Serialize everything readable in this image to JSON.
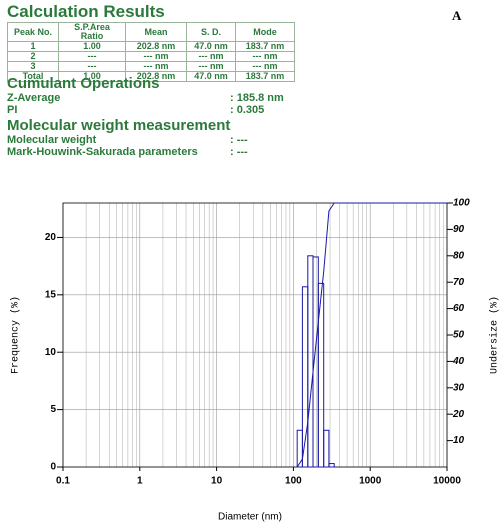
{
  "header": {
    "title": "Calculation Results",
    "label": "A"
  },
  "table": {
    "columns": [
      "Peak No.",
      "S.P.Area Ratio",
      "Mean",
      "S. D.",
      "Mode"
    ],
    "rows": [
      [
        "1",
        "1.00",
        "202.8 nm",
        "47.0 nm",
        "183.7 nm"
      ],
      [
        "2",
        "---",
        "--- nm",
        "--- nm",
        "--- nm"
      ],
      [
        "3",
        "---",
        "--- nm",
        "--- nm",
        "--- nm"
      ],
      [
        "Total",
        "1.00",
        "202.8 nm",
        "47.0 nm",
        "183.7 nm"
      ]
    ]
  },
  "cumulant": {
    "title": "Cumulant Operations",
    "items": [
      {
        "label": "Z-Average",
        "value": ": 185.8 nm"
      },
      {
        "label": "PI",
        "value": ": 0.305"
      }
    ]
  },
  "molecular": {
    "title": "Molecular weight measurement",
    "items": [
      {
        "label": "Molecular weight",
        "value": ": ---"
      },
      {
        "label": "Mark-Houwink-Sakurada parameters",
        "value": ": ---"
      }
    ]
  },
  "chart_data": {
    "type": "histogram",
    "xlabel": "Diameter (nm)",
    "ylabel": "Frequency (%)",
    "y2label": "Undersize (%)",
    "xscale": "log",
    "xlim": [
      0.1,
      10000
    ],
    "xticks": [
      0.1,
      1,
      10,
      100,
      1000,
      10000
    ],
    "ylim": [
      0,
      23
    ],
    "yticks": [
      0,
      5,
      10,
      15,
      20
    ],
    "y2lim": [
      0,
      100
    ],
    "y2ticks": [
      10,
      20,
      30,
      40,
      50,
      60,
      70,
      80,
      90,
      100
    ],
    "grid": true,
    "color": "#1a1aa6",
    "bins": [
      112,
      131,
      154,
      180,
      211,
      248,
      290,
      340
    ],
    "values": [
      3.2,
      15.7,
      18.4,
      18.3,
      16.0,
      3.2,
      0.3
    ],
    "undersize": {
      "axis": "y2",
      "color": "#1a1aa6",
      "x": [
        112,
        131,
        154,
        180,
        211,
        248,
        290,
        340,
        10000
      ],
      "values": [
        0,
        3,
        17,
        36,
        55,
        74,
        97,
        100,
        100
      ]
    }
  }
}
